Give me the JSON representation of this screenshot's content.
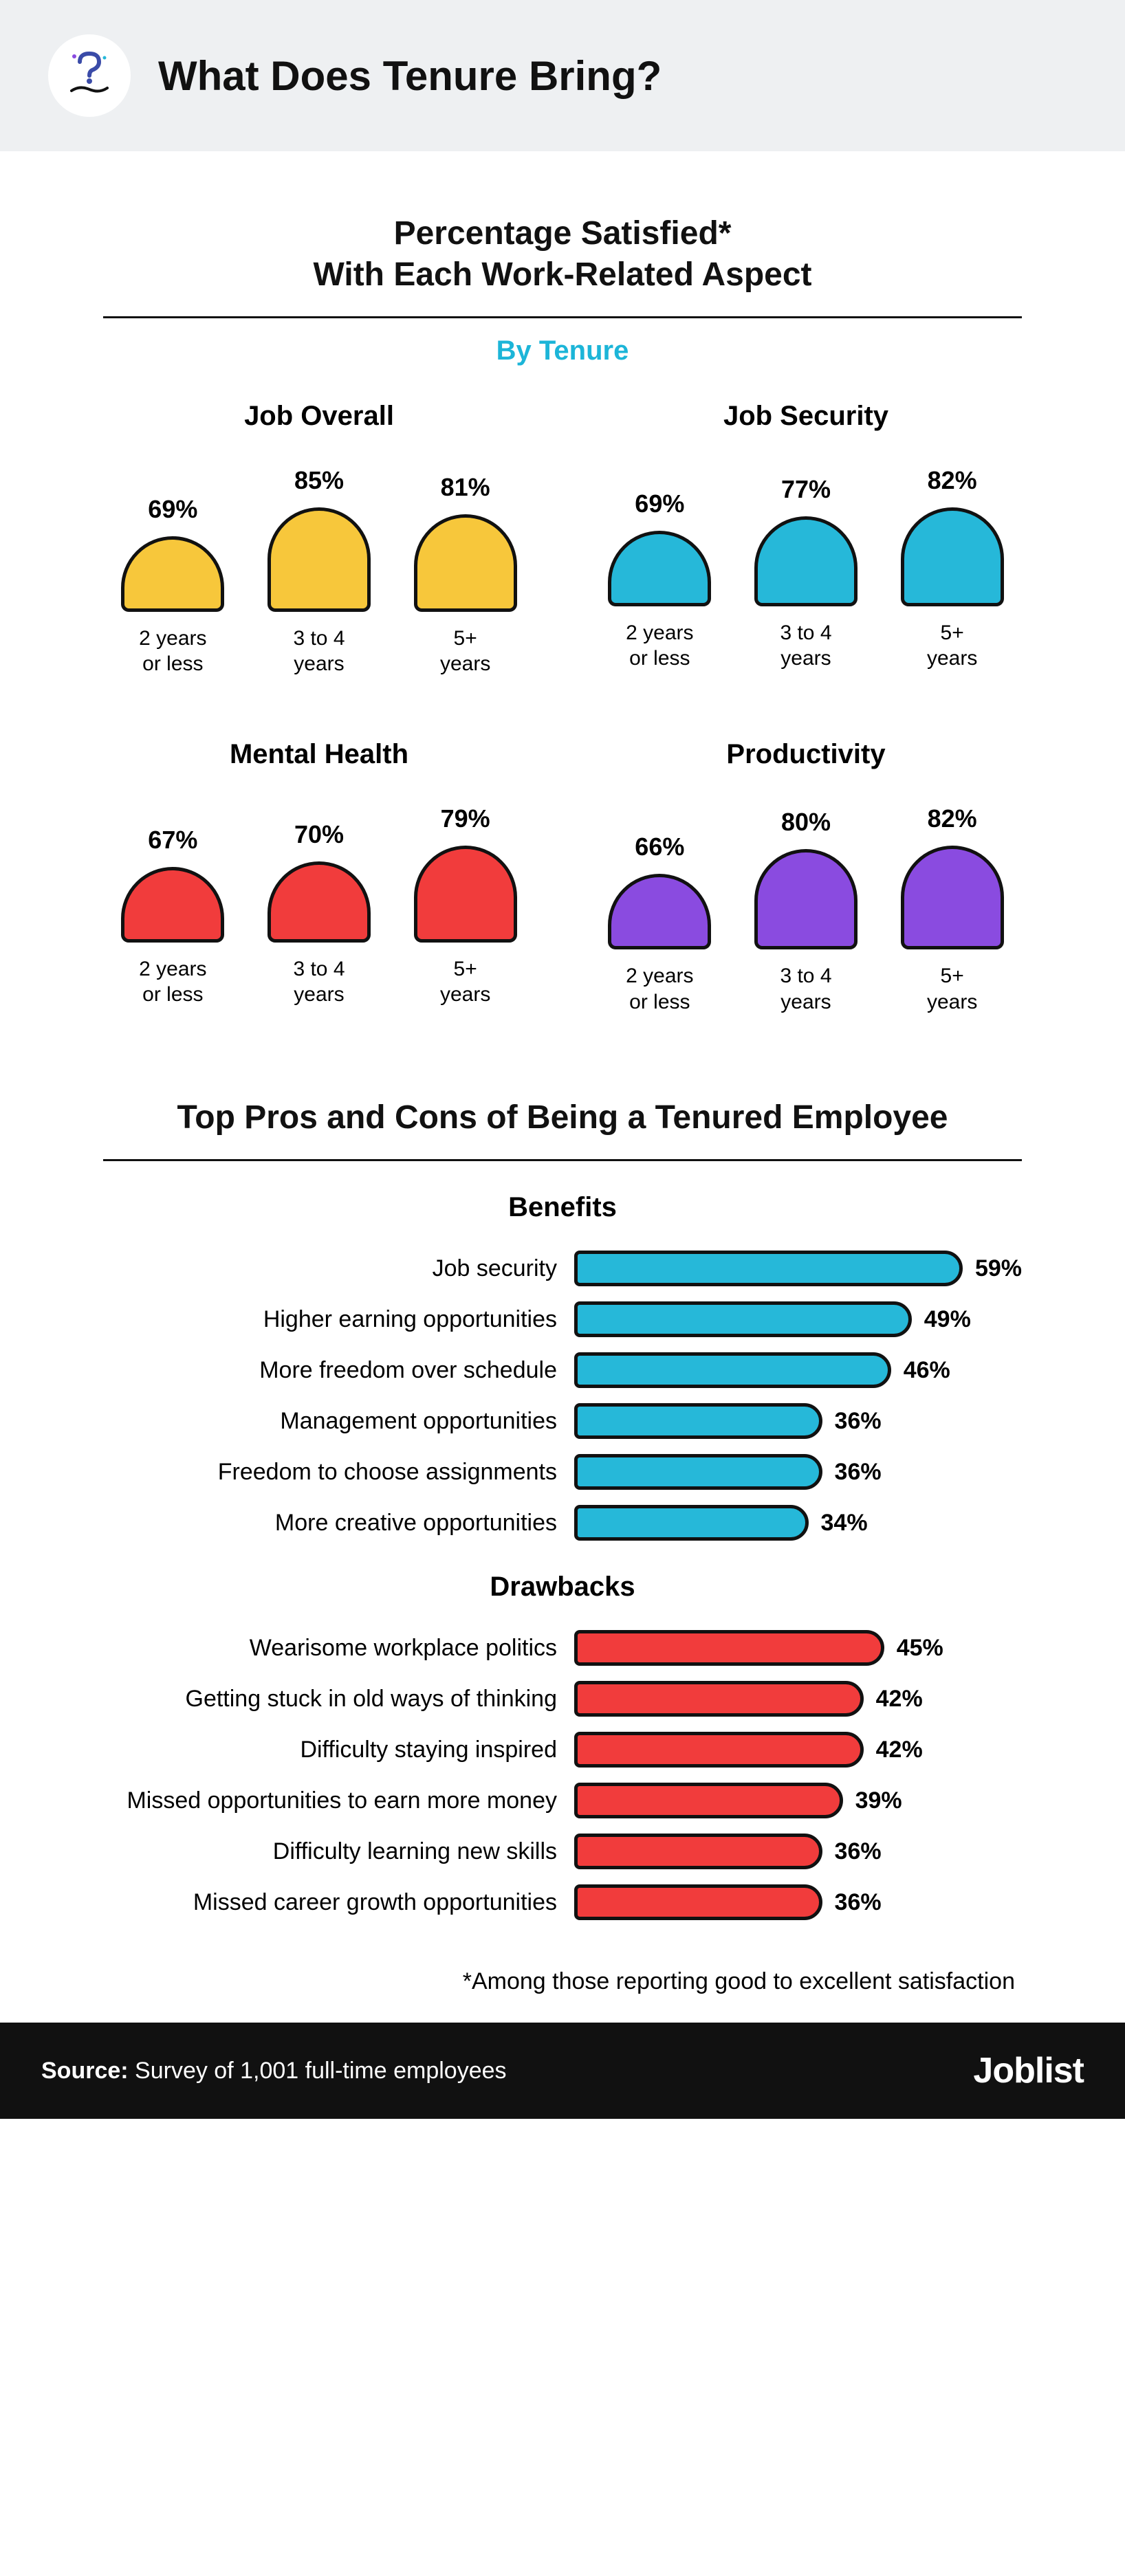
{
  "header": {
    "title": "What Does Tenure Bring?",
    "icon_name": "question-hand-icon"
  },
  "satisfaction": {
    "title_line1": "Percentage Satisfied*",
    "title_line2": "With Each Work-Related Aspect",
    "subtitle": "By Tenure",
    "tenure_labels": [
      "2 years\nor less",
      "3 to 4\nyears",
      "5+\nyears"
    ],
    "dome_base_height": 110,
    "dome_scale": 2.6,
    "panels": [
      {
        "title": "Job Overall",
        "color": "#f7c73b",
        "values": [
          69,
          85,
          81
        ]
      },
      {
        "title": "Job Security",
        "color": "#26b8d9",
        "values": [
          69,
          77,
          82
        ]
      },
      {
        "title": "Mental Health",
        "color": "#f13c3c",
        "values": [
          67,
          70,
          79
        ]
      },
      {
        "title": "Productivity",
        "color": "#8a4be0",
        "values": [
          66,
          80,
          82
        ]
      }
    ]
  },
  "proscons": {
    "title": "Top Pros and Cons of Being a Tenured Employee",
    "bar_max_pct": 65,
    "benefits": {
      "heading": "Benefits",
      "color": "#26b8d9",
      "items": [
        {
          "label": "Job security",
          "pct": 59
        },
        {
          "label": "Higher earning opportunities",
          "pct": 49
        },
        {
          "label": "More freedom over schedule",
          "pct": 46
        },
        {
          "label": "Management opportunities",
          "pct": 36
        },
        {
          "label": "Freedom to choose assignments",
          "pct": 36
        },
        {
          "label": "More creative opportunities",
          "pct": 34
        }
      ]
    },
    "drawbacks": {
      "heading": "Drawbacks",
      "color": "#f13c3c",
      "items": [
        {
          "label": "Wearisome workplace politics",
          "pct": 45
        },
        {
          "label": "Getting stuck in old ways of thinking",
          "pct": 42
        },
        {
          "label": "Difficulty staying inspired",
          "pct": 42
        },
        {
          "label": "Missed opportunities to earn more money",
          "pct": 39
        },
        {
          "label": "Difficulty learning new skills",
          "pct": 36
        },
        {
          "label": "Missed career growth opportunities",
          "pct": 36
        }
      ]
    }
  },
  "footnote": "*Among those reporting good to excellent satisfaction",
  "footer": {
    "source_label": "Source:",
    "source_text": "Survey of 1,001 full-time employees",
    "brand": "Joblist"
  },
  "colors": {
    "header_bg": "#eef0f2",
    "text": "#111111",
    "accent": "#1cb5d8",
    "footer_bg": "#111111"
  }
}
